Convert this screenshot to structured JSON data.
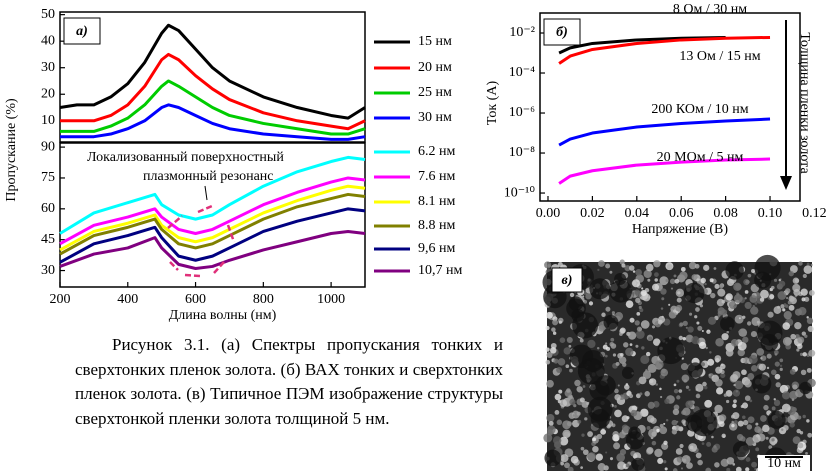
{
  "chart_data": [
    {
      "type": "line",
      "panel_label": "а)",
      "ylabel": "Пропускание (%)",
      "x": [
        200,
        250,
        300,
        350,
        400,
        450,
        500,
        520,
        550,
        600,
        650,
        700,
        800,
        900,
        1000,
        1050,
        1100
      ],
      "xlim": [
        200,
        1100
      ],
      "ylim": [
        2,
        51
      ],
      "yticks": [
        10,
        20,
        30,
        40,
        50
      ],
      "series": [
        {
          "name": "15 нм",
          "color": "#000000",
          "values": [
            15,
            16,
            16,
            19,
            24,
            32,
            43,
            46,
            44,
            37,
            30,
            25,
            19,
            15,
            12,
            11,
            15
          ]
        },
        {
          "name": "20 нм",
          "color": "#ff0000",
          "values": [
            10,
            10,
            10,
            12,
            16,
            23,
            33,
            35,
            33,
            27,
            22,
            18,
            13,
            10,
            8,
            7,
            10
          ]
        },
        {
          "name": "25 нм",
          "color": "#00cc00",
          "values": [
            6,
            6,
            6,
            8,
            11,
            16,
            23,
            25,
            23,
            19,
            15,
            12,
            9,
            7,
            5,
            5,
            7
          ]
        },
        {
          "name": "30 нм",
          "color": "#0000ff",
          "values": [
            4,
            4,
            4,
            5,
            7,
            10,
            15,
            16,
            15,
            12,
            9,
            7,
            5,
            4,
            3,
            3,
            4
          ]
        }
      ]
    },
    {
      "type": "line",
      "xlabel": "Длина волны (нм)",
      "annotation": "Локализованный поверхностный плазмонный резонанс",
      "x": [
        200,
        300,
        400,
        480,
        500,
        550,
        600,
        650,
        700,
        800,
        900,
        1000,
        1050,
        1100
      ],
      "xlim": [
        200,
        1100
      ],
      "ylim": [
        22,
        92
      ],
      "xticks": [
        200,
        400,
        600,
        800,
        1000
      ],
      "yticks": [
        30,
        45,
        60,
        75,
        90
      ],
      "series": [
        {
          "name": "6.2 нм",
          "color": "#00ffff",
          "values": [
            48,
            58,
            63,
            67,
            62,
            57,
            55,
            57,
            62,
            71,
            78,
            83,
            85,
            84
          ]
        },
        {
          "name": "7.6 нм",
          "color": "#ff00ff",
          "values": [
            43,
            52,
            56,
            60,
            56,
            50,
            48,
            50,
            54,
            62,
            68,
            73,
            75,
            74
          ]
        },
        {
          "name": "8.1 нм",
          "color": "#ffff00",
          "values": [
            40,
            49,
            53,
            57,
            52,
            46,
            44,
            46,
            50,
            58,
            64,
            69,
            71,
            70
          ]
        },
        {
          "name": "8.8 нм",
          "color": "#808000",
          "values": [
            38,
            47,
            51,
            55,
            50,
            43,
            41,
            43,
            47,
            55,
            61,
            65,
            67,
            66
          ]
        },
        {
          "name": "9,6 нм",
          "color": "#000080",
          "values": [
            34,
            43,
            47,
            51,
            46,
            37,
            35,
            37,
            41,
            49,
            54,
            58,
            60,
            59
          ]
        },
        {
          "name": "10,7 нм",
          "color": "#800080",
          "values": [
            32,
            38,
            41,
            46,
            41,
            33,
            31,
            32,
            35,
            40,
            44,
            48,
            49,
            48
          ]
        }
      ]
    },
    {
      "type": "line",
      "panel_label": "б)",
      "xlabel": "Напряжение (В)",
      "ylabel": "Ток (А)",
      "log_y": true,
      "annotation": "Толщина пленки золота",
      "x": [
        0.005,
        0.01,
        0.02,
        0.04,
        0.06,
        0.08,
        0.1
      ],
      "xlim": [
        -0.0036,
        0.1135
      ],
      "ylim": [
        4e-11,
        0.1
      ],
      "xticks": [
        {
          "value": 0,
          "label": "0.00"
        },
        0.02,
        0.04,
        0.06,
        0.08,
        {
          "value": 0.1,
          "label": "0.10"
        },
        0.12
      ],
      "yticks": [
        {
          "value": 0.01,
          "label": "10⁻²"
        },
        {
          "value": 0.0001,
          "label": "10⁻⁴"
        },
        {
          "value": 1e-06,
          "label": "10⁻⁶"
        },
        {
          "value": 1e-08,
          "label": "10⁻⁸"
        },
        {
          "value": 1e-10,
          "label": "10⁻¹⁰"
        }
      ],
      "series": [
        {
          "name": "8 Ом / 30 нм",
          "color": "#000000",
          "values": [
            0.001,
            0.0018,
            0.003,
            0.0045,
            0.0055,
            0.006,
            null
          ]
        },
        {
          "name": "13 Ом / 15 нм",
          "color": "#ff0000",
          "values": [
            0.0003,
            0.0007,
            0.0015,
            0.003,
            0.0045,
            0.0055,
            0.006
          ]
        },
        {
          "name": "200 КОм / 10 нм",
          "color": "#0000ff",
          "values": [
            2.5e-08,
            5e-08,
            1e-07,
            2e-07,
            3e-07,
            4e-07,
            5e-07
          ]
        },
        {
          "name": "20 МОм / 5 нм",
          "color": "#ff00ff",
          "values": [
            3e-10,
            7e-10,
            1.3e-09,
            2.5e-09,
            3.5e-09,
            4.5e-09,
            5e-09
          ]
        }
      ]
    }
  ],
  "image": {
    "panel_label": "в)",
    "scale_bar": "10 нм"
  },
  "caption": "Рисунок 3.1. (а) Спектры пропускания тонких и сверхтонких пленок золота. (б) ВАХ тонких и сверхтонких пленок золота. (в) Типичное ПЭМ изображение структуры сверхтонкой пленки золота толщиной 5 нм."
}
